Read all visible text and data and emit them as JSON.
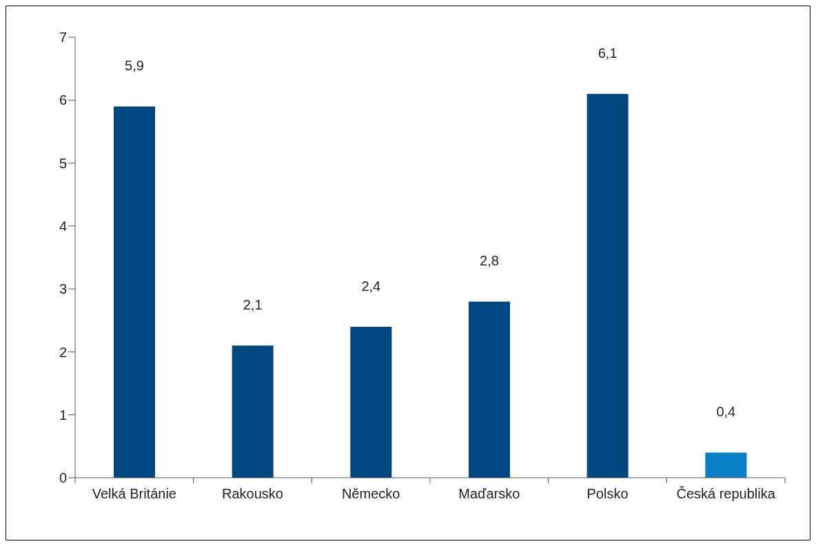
{
  "chart_data": {
    "type": "bar",
    "categories": [
      "Velká Británie",
      "Rakousko",
      "Německo",
      "Maďarsko",
      "Polsko",
      "Česká republika"
    ],
    "values": [
      5.9,
      2.1,
      2.4,
      2.8,
      6.1,
      0.4
    ],
    "colors": [
      "#00467f",
      "#00467f",
      "#00467f",
      "#00467f",
      "#00467f",
      "#0a7fc8"
    ],
    "value_labels": [
      "5,9",
      "2,1",
      "2,4",
      "2,8",
      "6,1",
      "0,4"
    ],
    "ylim": [
      0,
      7
    ],
    "yticks": [
      0,
      1,
      2,
      3,
      4,
      5,
      6,
      7
    ],
    "grid": false,
    "legend": false
  }
}
